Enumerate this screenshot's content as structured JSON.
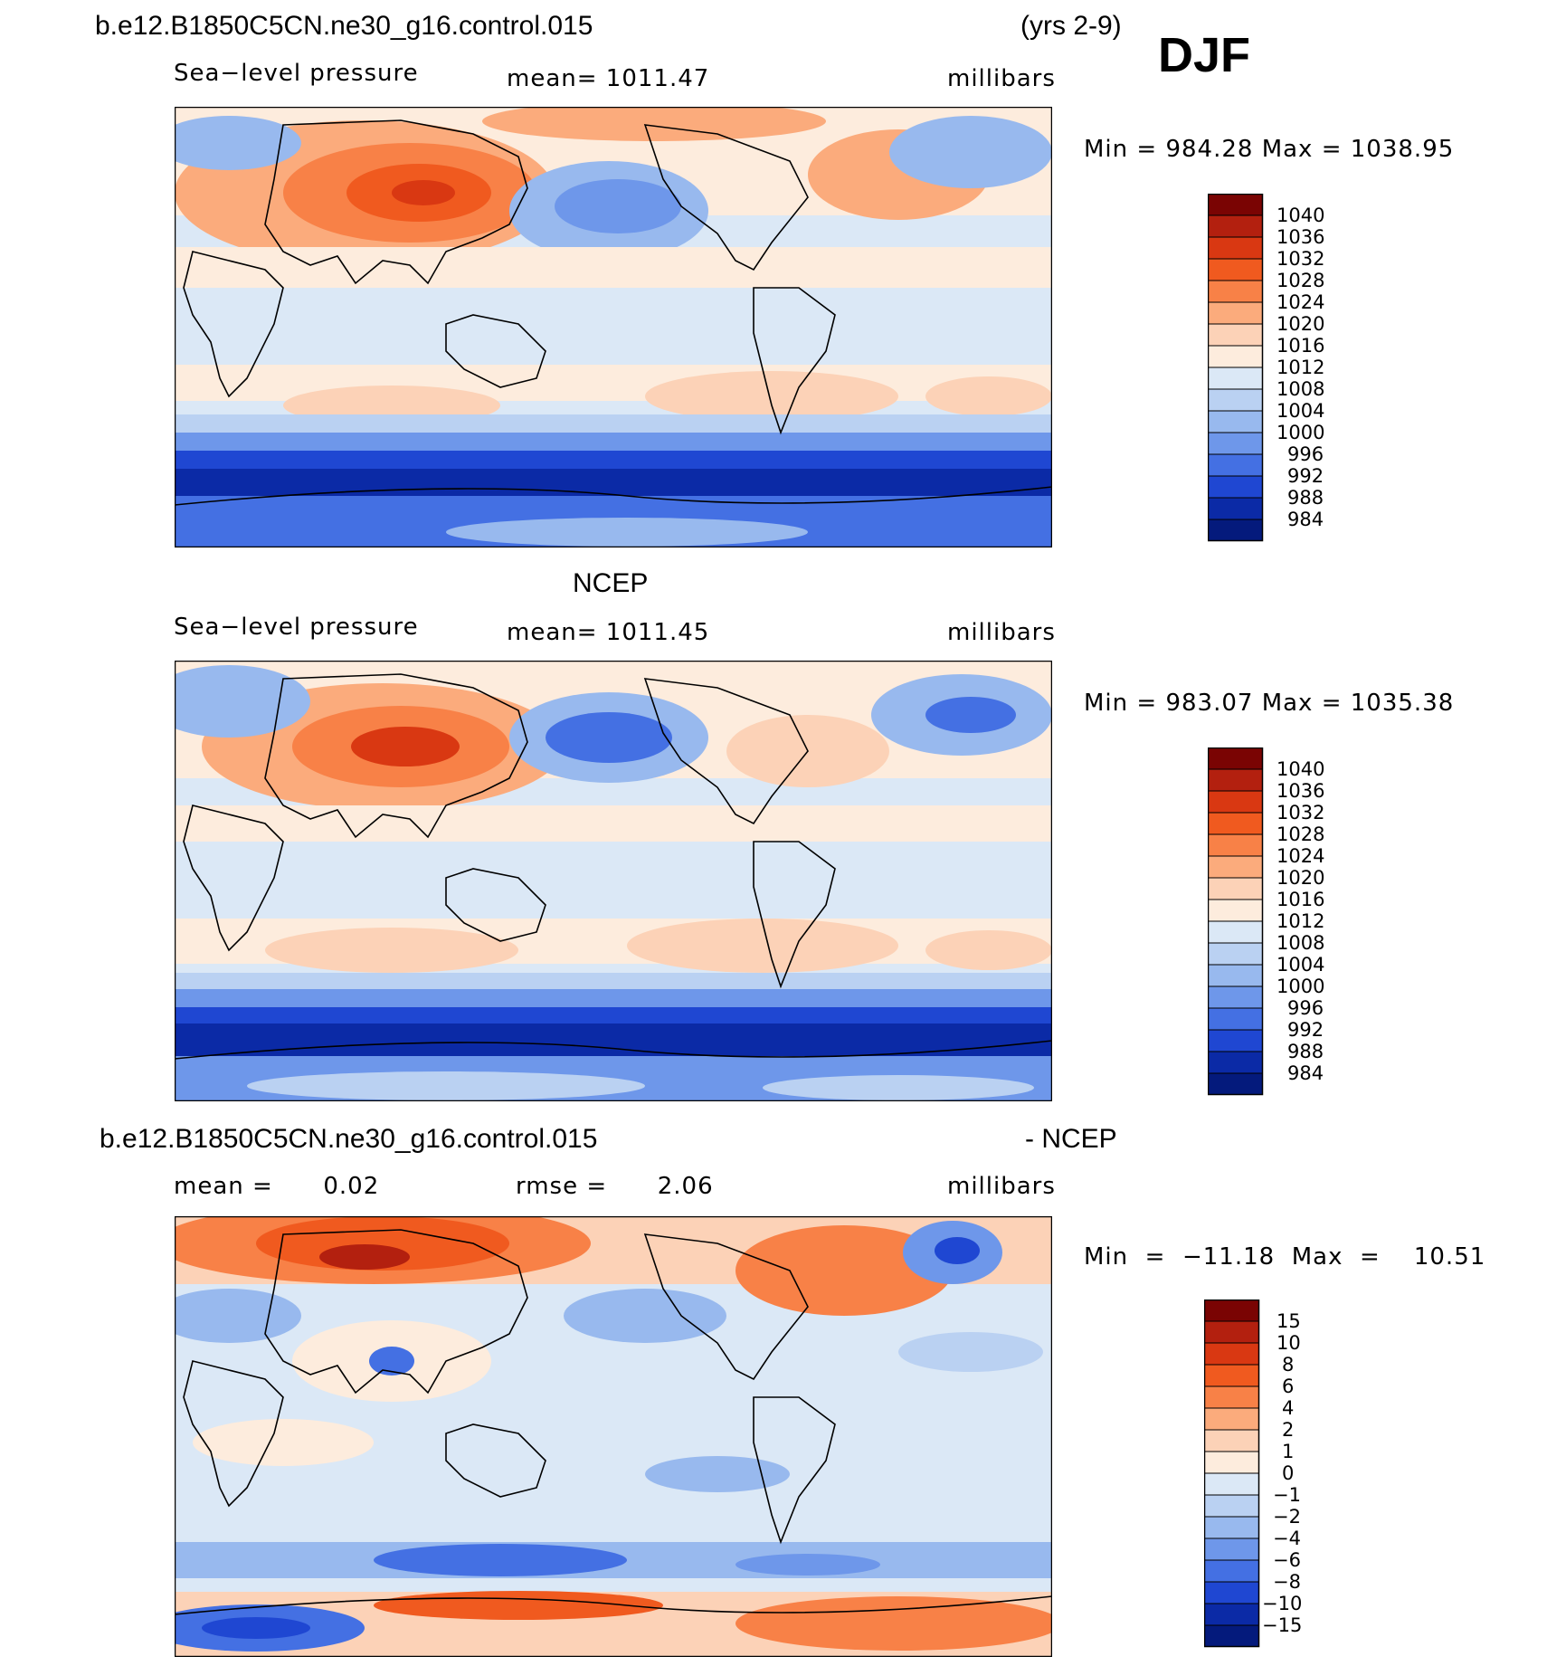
{
  "header": {
    "case_name": "b.e12.B1850C5CN.ne30_g16.control.015",
    "years": "(yrs 2-9)",
    "season": "DJF"
  },
  "panels": [
    {
      "title": "",
      "left": "Sea−level pressure",
      "center": "mean=  1011.47",
      "right": "millibars",
      "minmax": "Min  =  984.28  Max  =  1038.95",
      "legend": [
        "1040",
        "1036",
        "1032",
        "1028",
        "1024",
        "1020",
        "1016",
        "1012",
        "1008",
        "1004",
        "1000",
        "996",
        "992",
        "988",
        "984"
      ],
      "colors": [
        "#7a0403",
        "#b3200f",
        "#d93812",
        "#f05a1f",
        "#f88147",
        "#fbab7c",
        "#fcd2b7",
        "#fdecdd",
        "#dbe8f6",
        "#bad1f2",
        "#98b9ee",
        "#6e97ea",
        "#4470e3",
        "#1f47d2",
        "#0b2aa6",
        "#041a7c"
      ]
    },
    {
      "title": "NCEP",
      "left": "Sea−level pressure",
      "center": "mean=  1011.45",
      "right": "millibars",
      "minmax": "Min  =  983.07  Max  =  1035.38",
      "legend": [
        "1040",
        "1036",
        "1032",
        "1028",
        "1024",
        "1020",
        "1016",
        "1012",
        "1008",
        "1004",
        "1000",
        "996",
        "992",
        "988",
        "984"
      ],
      "colors": [
        "#7a0403",
        "#b3200f",
        "#d93812",
        "#f05a1f",
        "#f88147",
        "#fbab7c",
        "#fcd2b7",
        "#fdecdd",
        "#dbe8f6",
        "#bad1f2",
        "#98b9ee",
        "#6e97ea",
        "#4470e3",
        "#1f47d2",
        "#0b2aa6",
        "#041a7c"
      ]
    },
    {
      "title_left": "b.e12.B1850C5CN.ne30_g16.control.015",
      "title_right": "- NCEP",
      "left": "mean =      0.02",
      "center": "rmse =      2.06",
      "right": "millibars",
      "minmax": "Min  =  −11.18  Max  =    10.51",
      "legend": [
        "15",
        "10",
        "8",
        "6",
        "4",
        "2",
        "1",
        "0",
        "−1",
        "−2",
        "−4",
        "−6",
        "−8",
        "−10",
        "−15"
      ],
      "colors": [
        "#7a0403",
        "#b3200f",
        "#d93812",
        "#f05a1f",
        "#f88147",
        "#fbab7c",
        "#fcd2b7",
        "#fdecdd",
        "#dbe8f6",
        "#bad1f2",
        "#98b9ee",
        "#6e97ea",
        "#4470e3",
        "#1f47d2",
        "#0b2aa6",
        "#041a7c"
      ]
    }
  ]
}
